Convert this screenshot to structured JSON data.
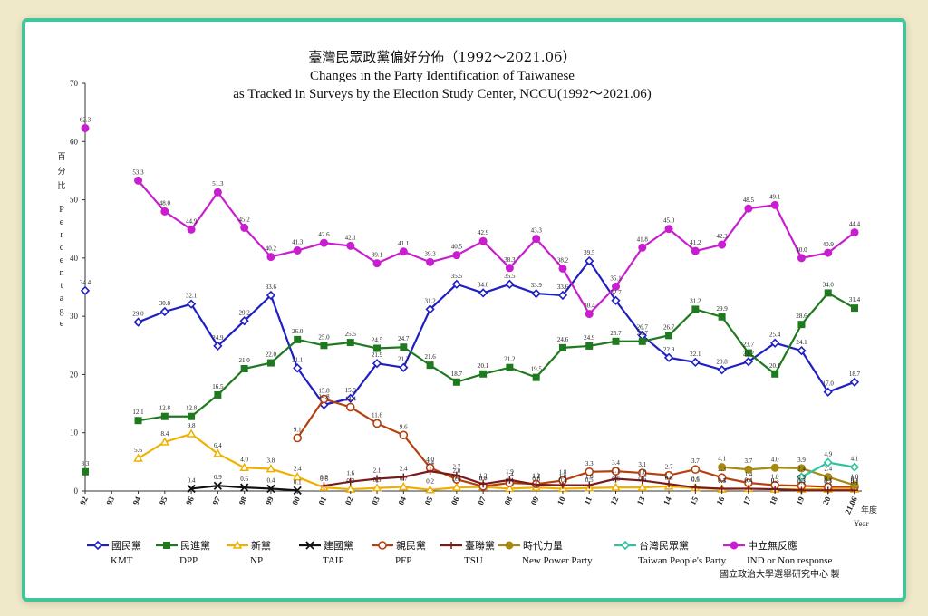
{
  "chart_data": {
    "type": "line",
    "title_zh": "臺灣民眾政黨偏好分佈（1992～2021.06）",
    "title_en_1": "Changes in the Party Identification of Taiwanese",
    "title_en_2": "as Tracked in Surveys by the Election Study Center, NCCU(1992～2021.06)",
    "ylabel_zh": "百分比",
    "ylabel_en": "Percentage",
    "xlabel_zh": "年度",
    "xlabel_en": "Year",
    "ylim": [
      0,
      70
    ],
    "yticks": [
      "0",
      "10",
      "20",
      "30",
      "40",
      "50",
      "60",
      "70"
    ],
    "categories": [
      "92",
      "93",
      "94",
      "95",
      "96",
      "97",
      "98",
      "99",
      "00",
      "01",
      "02",
      "03",
      "04",
      "05",
      "06",
      "07",
      "08",
      "09",
      "10",
      "11",
      "12",
      "13",
      "14",
      "15",
      "16",
      "17",
      "18",
      "19",
      "20",
      "21.06"
    ],
    "credit": "國立政治大學選舉研究中心 製",
    "series": [
      {
        "name_zh": "國民黨",
        "name_en": "KMT",
        "color": "#1f1fc4",
        "marker": "diamond",
        "labels": "above",
        "values": [
          34.4,
          null,
          29.0,
          30.8,
          32.1,
          24.9,
          29.2,
          33.6,
          21.1,
          14.8,
          15.9,
          21.9,
          21.2,
          31.2,
          35.5,
          34.0,
          35.5,
          33.9,
          33.6,
          39.5,
          32.7,
          26.7,
          22.9,
          22.1,
          20.8,
          22.2,
          25.4,
          24.1,
          17.0,
          18.7
        ]
      },
      {
        "name_zh": "民進黨",
        "name_en": "DPP",
        "color": "#1f7a1f",
        "marker": "square",
        "labels": "above",
        "values": [
          3.3,
          null,
          12.1,
          12.8,
          12.8,
          16.5,
          21.0,
          22.0,
          26.0,
          25.0,
          25.5,
          24.5,
          24.7,
          21.6,
          18.7,
          20.1,
          21.2,
          19.5,
          24.6,
          24.9,
          25.7,
          25.7,
          26.7,
          31.2,
          29.9,
          23.7,
          20.1,
          28.6,
          34.0,
          31.4
        ]
      },
      {
        "name_zh": "新黨",
        "name_en": "NP",
        "color": "#f0b000",
        "marker": "triangle",
        "labels": "above",
        "values": [
          null,
          null,
          5.6,
          8.4,
          9.8,
          6.4,
          4.0,
          3.8,
          2.4,
          0.6,
          0.3,
          0.5,
          0.7,
          0.2,
          0.6,
          0.7,
          0.4,
          0.6,
          0.4,
          0.5,
          0.6,
          0.6,
          0.8,
          0.5,
          0.3,
          0.4,
          0.3,
          0.3,
          0.3,
          0.3
        ]
      },
      {
        "name_zh": "建國黨",
        "name_en": "TAIP",
        "color": "#111111",
        "marker": "x",
        "labels": "above",
        "values": [
          null,
          null,
          null,
          null,
          0.4,
          0.9,
          0.6,
          0.4,
          0.1,
          null,
          null,
          null,
          null,
          null,
          null,
          null,
          null,
          null,
          null,
          null,
          null,
          null,
          null,
          null,
          null,
          null,
          null,
          null,
          null,
          null
        ]
      },
      {
        "name_zh": "親民黨",
        "name_en": "PFP",
        "color": "#b5400f",
        "marker": "circle",
        "labels": "above",
        "values": [
          null,
          null,
          null,
          null,
          null,
          null,
          null,
          null,
          9.1,
          15.8,
          14.4,
          11.6,
          9.6,
          4.0,
          2.0,
          0.8,
          1.4,
          1.2,
          1.8,
          3.3,
          3.4,
          3.1,
          2.7,
          3.7,
          2.3,
          1.4,
          1.0,
          0.9,
          0.7,
          0.7
        ]
      },
      {
        "name_zh": "臺聯黨",
        "name_en": "TSU",
        "color": "#7a1a1a",
        "marker": "plus",
        "labels": "above",
        "values": [
          null,
          null,
          null,
          null,
          null,
          null,
          null,
          null,
          null,
          0.9,
          1.6,
          2.1,
          2.4,
          3.4,
          2.7,
          1.2,
          1.9,
          1.1,
          1.0,
          1.0,
          2.1,
          1.8,
          1.2,
          0.6,
          0.4,
          0.4,
          0.3,
          0.1,
          0.1,
          0.1
        ]
      },
      {
        "name_zh": "時代力量",
        "name_en": "New Power Party",
        "color": "#a68a12",
        "marker": "circle-filled",
        "labels": "above",
        "values": [
          null,
          null,
          null,
          null,
          null,
          null,
          null,
          null,
          null,
          null,
          null,
          null,
          null,
          null,
          null,
          null,
          null,
          null,
          null,
          null,
          null,
          null,
          null,
          null,
          4.1,
          3.7,
          4.0,
          3.9,
          2.4,
          1.0
        ]
      },
      {
        "name_zh": "台灣民眾黨",
        "name_en": "Taiwan People's Party",
        "color": "#2ec4a0",
        "marker": "diamond",
        "labels": "above",
        "values": [
          null,
          null,
          null,
          null,
          null,
          null,
          null,
          null,
          null,
          null,
          null,
          null,
          null,
          null,
          null,
          null,
          null,
          null,
          null,
          null,
          null,
          null,
          null,
          null,
          null,
          null,
          null,
          2.4,
          4.9,
          4.1
        ]
      },
      {
        "name_zh": "中立無反應",
        "name_en": "IND or Non response",
        "color": "#c81ecf",
        "marker": "circle-filled",
        "labels": "above",
        "values": [
          62.3,
          null,
          53.3,
          48.0,
          44.9,
          51.3,
          45.2,
          40.2,
          41.3,
          42.6,
          42.1,
          39.1,
          41.1,
          39.3,
          40.5,
          42.9,
          38.3,
          43.3,
          38.2,
          30.4,
          35.1,
          41.8,
          45.0,
          41.2,
          42.3,
          48.5,
          49.1,
          40.0,
          40.9,
          44.4
        ]
      }
    ]
  }
}
